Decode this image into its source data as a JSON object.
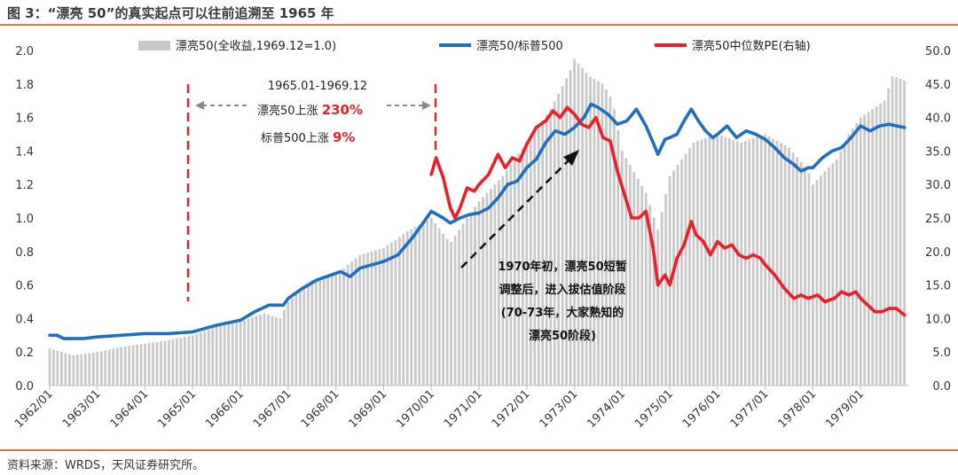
{
  "figure_title": "图 3：“漂亮 50”的真实起点可以往前追溯至 1965 年",
  "source": "资料来源：WRDS，天风证券研究所。",
  "annotations": {
    "period": "1965.01-1969.12",
    "line1_prefix": "漂亮50上涨 ",
    "line1_value": "230%",
    "line2_prefix": "标普500上涨 ",
    "line2_value": "9%",
    "note1": "1970年初，漂亮50短暂",
    "note2": "调整后，进入拔估值阶段",
    "note3": "(70-73年，大家熟知的",
    "note4": "漂亮50阶段)"
  },
  "chart_data": {
    "type": "bar",
    "x_tick_labels": [
      "1962/01",
      "1963/01",
      "1964/01",
      "1965/01",
      "1966/01",
      "1967/01",
      "1968/01",
      "1969/01",
      "1970/01",
      "1971/01",
      "1972/01",
      "1973/01",
      "1974/01",
      "1975/01",
      "1976/01",
      "1977/01",
      "1978/01",
      "1979/01"
    ],
    "y_left_ticks": [
      "0.0",
      "0.2",
      "0.4",
      "0.6",
      "0.8",
      "1.0",
      "1.2",
      "1.4",
      "1.6",
      "1.8",
      "2.0"
    ],
    "y_right_ticks": [
      "0.0",
      "5.0",
      "10.0",
      "15.0",
      "20.0",
      "25.0",
      "30.0",
      "35.0",
      "40.0",
      "45.0",
      "50.0"
    ],
    "ylim_left": [
      0,
      2.0
    ],
    "ylim_right": [
      0,
      50
    ],
    "legend_position": "top",
    "series": [
      {
        "name": "漂亮50(全收益,1969.12=1.0)",
        "type": "bar",
        "axis": "left",
        "color": "#c8c8c8",
        "points": [
          [
            1962.0,
            0.22
          ],
          [
            1962.5,
            0.18
          ],
          [
            1963.0,
            0.2
          ],
          [
            1963.5,
            0.23
          ],
          [
            1964.0,
            0.25
          ],
          [
            1964.5,
            0.27
          ],
          [
            1965.0,
            0.3
          ],
          [
            1965.5,
            0.35
          ],
          [
            1966.0,
            0.38
          ],
          [
            1966.5,
            0.43
          ],
          [
            1966.83,
            0.4
          ],
          [
            1967.0,
            0.5
          ],
          [
            1967.5,
            0.63
          ],
          [
            1968.0,
            0.66
          ],
          [
            1968.5,
            0.78
          ],
          [
            1969.0,
            0.82
          ],
          [
            1969.5,
            0.92
          ],
          [
            1970.0,
            1.0
          ],
          [
            1970.4,
            0.85
          ],
          [
            1970.7,
            0.98
          ],
          [
            1971.0,
            1.1
          ],
          [
            1971.5,
            1.25
          ],
          [
            1972.0,
            1.45
          ],
          [
            1972.5,
            1.65
          ],
          [
            1972.9,
            1.87
          ],
          [
            1973.0,
            1.95
          ],
          [
            1973.3,
            1.85
          ],
          [
            1973.6,
            1.8
          ],
          [
            1973.8,
            1.7
          ],
          [
            1974.0,
            1.4
          ],
          [
            1974.5,
            1.15
          ],
          [
            1974.75,
            0.93
          ],
          [
            1975.0,
            1.25
          ],
          [
            1975.5,
            1.45
          ],
          [
            1976.0,
            1.5
          ],
          [
            1976.5,
            1.45
          ],
          [
            1977.0,
            1.5
          ],
          [
            1977.5,
            1.42
          ],
          [
            1977.9,
            1.28
          ],
          [
            1978.0,
            1.2
          ],
          [
            1978.25,
            1.28
          ],
          [
            1978.5,
            1.35
          ],
          [
            1978.75,
            1.5
          ],
          [
            1979.0,
            1.6
          ],
          [
            1979.5,
            1.7
          ],
          [
            1979.67,
            1.85
          ],
          [
            1979.92,
            1.82
          ]
        ]
      },
      {
        "name": "漂亮50/标普500",
        "type": "line",
        "axis": "left",
        "color": "#1f6fbf",
        "points": [
          [
            1962.0,
            0.3
          ],
          [
            1962.15,
            0.3
          ],
          [
            1962.3,
            0.28
          ],
          [
            1962.5,
            0.28
          ],
          [
            1962.7,
            0.28
          ],
          [
            1963.0,
            0.29
          ],
          [
            1963.5,
            0.3
          ],
          [
            1964.0,
            0.31
          ],
          [
            1964.5,
            0.31
          ],
          [
            1965.0,
            0.32
          ],
          [
            1965.25,
            0.34
          ],
          [
            1965.5,
            0.36
          ],
          [
            1966.0,
            0.39
          ],
          [
            1966.3,
            0.44
          ],
          [
            1966.6,
            0.48
          ],
          [
            1966.9,
            0.48
          ],
          [
            1967.0,
            0.52
          ],
          [
            1967.3,
            0.58
          ],
          [
            1967.6,
            0.63
          ],
          [
            1967.9,
            0.66
          ],
          [
            1968.1,
            0.68
          ],
          [
            1968.3,
            0.65
          ],
          [
            1968.5,
            0.7
          ],
          [
            1968.75,
            0.72
          ],
          [
            1969.0,
            0.74
          ],
          [
            1969.3,
            0.78
          ],
          [
            1969.6,
            0.88
          ],
          [
            1969.85,
            0.98
          ],
          [
            1970.0,
            1.04
          ],
          [
            1970.25,
            1.0
          ],
          [
            1970.4,
            0.97
          ],
          [
            1970.6,
            1.0
          ],
          [
            1970.8,
            1.02
          ],
          [
            1971.0,
            1.03
          ],
          [
            1971.2,
            1.06
          ],
          [
            1971.4,
            1.12
          ],
          [
            1971.6,
            1.2
          ],
          [
            1971.8,
            1.22
          ],
          [
            1972.0,
            1.3
          ],
          [
            1972.2,
            1.35
          ],
          [
            1972.4,
            1.45
          ],
          [
            1972.6,
            1.52
          ],
          [
            1972.8,
            1.5
          ],
          [
            1973.0,
            1.54
          ],
          [
            1973.2,
            1.6
          ],
          [
            1973.35,
            1.68
          ],
          [
            1973.5,
            1.66
          ],
          [
            1973.7,
            1.62
          ],
          [
            1973.9,
            1.56
          ],
          [
            1974.1,
            1.58
          ],
          [
            1974.3,
            1.65
          ],
          [
            1974.5,
            1.55
          ],
          [
            1974.65,
            1.45
          ],
          [
            1974.75,
            1.38
          ],
          [
            1974.9,
            1.47
          ],
          [
            1975.0,
            1.48
          ],
          [
            1975.15,
            1.5
          ],
          [
            1975.3,
            1.58
          ],
          [
            1975.45,
            1.65
          ],
          [
            1975.6,
            1.58
          ],
          [
            1975.75,
            1.52
          ],
          [
            1975.9,
            1.48
          ],
          [
            1976.0,
            1.5
          ],
          [
            1976.2,
            1.55
          ],
          [
            1976.4,
            1.48
          ],
          [
            1976.6,
            1.52
          ],
          [
            1976.8,
            1.5
          ],
          [
            1977.0,
            1.47
          ],
          [
            1977.2,
            1.42
          ],
          [
            1977.4,
            1.36
          ],
          [
            1977.6,
            1.32
          ],
          [
            1977.75,
            1.28
          ],
          [
            1977.9,
            1.3
          ],
          [
            1978.0,
            1.3
          ],
          [
            1978.2,
            1.36
          ],
          [
            1978.4,
            1.4
          ],
          [
            1978.6,
            1.42
          ],
          [
            1978.8,
            1.48
          ],
          [
            1979.0,
            1.55
          ],
          [
            1979.2,
            1.52
          ],
          [
            1979.4,
            1.55
          ],
          [
            1979.6,
            1.56
          ],
          [
            1979.75,
            1.55
          ],
          [
            1979.92,
            1.54
          ]
        ]
      },
      {
        "name": "漂亮50中位数PE(右轴)",
        "type": "line",
        "axis": "right",
        "color": "#e8202a",
        "points": [
          [
            1970.0,
            31.5
          ],
          [
            1970.1,
            34.0
          ],
          [
            1970.25,
            31.0
          ],
          [
            1970.4,
            26.5
          ],
          [
            1970.5,
            25.0
          ],
          [
            1970.6,
            26.5
          ],
          [
            1970.75,
            29.5
          ],
          [
            1970.9,
            29.0
          ],
          [
            1971.0,
            30.0
          ],
          [
            1971.2,
            31.5
          ],
          [
            1971.4,
            34.5
          ],
          [
            1971.55,
            32.5
          ],
          [
            1971.7,
            34.0
          ],
          [
            1971.85,
            33.5
          ],
          [
            1972.0,
            36.0
          ],
          [
            1972.2,
            38.5
          ],
          [
            1972.4,
            39.5
          ],
          [
            1972.55,
            41.0
          ],
          [
            1972.7,
            40.0
          ],
          [
            1972.85,
            41.5
          ],
          [
            1973.0,
            40.5
          ],
          [
            1973.15,
            39.0
          ],
          [
            1973.3,
            38.5
          ],
          [
            1973.45,
            40.0
          ],
          [
            1973.6,
            37.0
          ],
          [
            1973.75,
            36.5
          ],
          [
            1973.9,
            32.0
          ],
          [
            1974.05,
            28.5
          ],
          [
            1974.2,
            25.0
          ],
          [
            1974.35,
            25.0
          ],
          [
            1974.5,
            26.0
          ],
          [
            1974.65,
            20.5
          ],
          [
            1974.75,
            15.0
          ],
          [
            1974.9,
            16.5
          ],
          [
            1975.0,
            15.0
          ],
          [
            1975.15,
            19.0
          ],
          [
            1975.3,
            21.0
          ],
          [
            1975.45,
            24.5
          ],
          [
            1975.55,
            22.5
          ],
          [
            1975.7,
            21.5
          ],
          [
            1975.85,
            19.5
          ],
          [
            1976.0,
            21.5
          ],
          [
            1976.15,
            20.5
          ],
          [
            1976.3,
            21.0
          ],
          [
            1976.45,
            19.5
          ],
          [
            1976.6,
            19.0
          ],
          [
            1976.75,
            19.5
          ],
          [
            1976.9,
            19.0
          ],
          [
            1977.0,
            18.0
          ],
          [
            1977.2,
            16.5
          ],
          [
            1977.4,
            14.5
          ],
          [
            1977.6,
            13.0
          ],
          [
            1977.75,
            13.5
          ],
          [
            1977.9,
            13.0
          ],
          [
            1978.1,
            13.5
          ],
          [
            1978.25,
            12.5
          ],
          [
            1978.45,
            13.0
          ],
          [
            1978.6,
            14.0
          ],
          [
            1978.75,
            13.5
          ],
          [
            1978.9,
            14.0
          ],
          [
            1979.0,
            13.0
          ],
          [
            1979.15,
            12.0
          ],
          [
            1979.3,
            11.0
          ],
          [
            1979.45,
            11.0
          ],
          [
            1979.6,
            11.5
          ],
          [
            1979.75,
            11.5
          ],
          [
            1979.92,
            10.5
          ]
        ]
      }
    ]
  }
}
